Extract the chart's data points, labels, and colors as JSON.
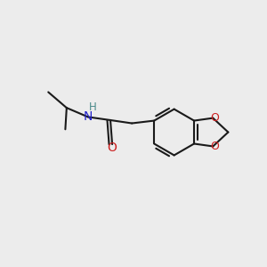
{
  "background_color": "#ececec",
  "bond_color": "#1a1a1a",
  "bond_width": 1.5,
  "nitrogen_color": "#2020cc",
  "oxygen_color": "#cc2020",
  "h_color": "#4a8a8a",
  "figsize": [
    3.0,
    3.0
  ],
  "dpi": 100,
  "xlim": [
    0,
    10
  ],
  "ylim": [
    0,
    10
  ]
}
